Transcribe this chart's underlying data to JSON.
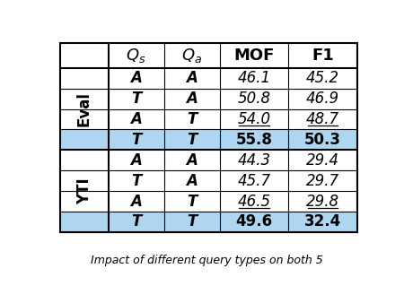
{
  "col_headers": [
    "",
    "$Q_s$",
    "$Q_a$",
    "MOF",
    "F1"
  ],
  "row_groups": [
    {
      "group_label": "Eval",
      "rows": [
        {
          "qs": "A",
          "qa": "A",
          "mof": "46.1",
          "f1": "45.2",
          "underline_mof": false,
          "underline_f1": false,
          "bold": false,
          "highlight": false
        },
        {
          "qs": "T",
          "qa": "A",
          "mof": "50.8",
          "f1": "46.9",
          "underline_mof": false,
          "underline_f1": false,
          "bold": false,
          "highlight": false
        },
        {
          "qs": "A",
          "qa": "T",
          "mof": "54.0",
          "f1": "48.7",
          "underline_mof": true,
          "underline_f1": true,
          "bold": false,
          "highlight": false
        },
        {
          "qs": "T",
          "qa": "T",
          "mof": "55.8",
          "f1": "50.3",
          "underline_mof": false,
          "underline_f1": false,
          "bold": true,
          "highlight": true
        }
      ]
    },
    {
      "group_label": "YTI",
      "rows": [
        {
          "qs": "A",
          "qa": "A",
          "mof": "44.3",
          "f1": "29.4",
          "underline_mof": false,
          "underline_f1": false,
          "bold": false,
          "highlight": false
        },
        {
          "qs": "T",
          "qa": "A",
          "mof": "45.7",
          "f1": "29.7",
          "underline_mof": false,
          "underline_f1": false,
          "bold": false,
          "highlight": false
        },
        {
          "qs": "A",
          "qa": "T",
          "mof": "46.5",
          "f1": "29.8",
          "underline_mof": true,
          "underline_f1": true,
          "bold": false,
          "highlight": false
        },
        {
          "qs": "T",
          "qa": "T",
          "mof": "49.6",
          "f1": "32.4",
          "underline_mof": false,
          "underline_f1": false,
          "bold": true,
          "highlight": true
        }
      ]
    }
  ],
  "highlight_color": "#AED6F1",
  "border_color": "#000000",
  "background_color": "#ffffff",
  "font_size": 12,
  "header_font_size": 13,
  "group_label_font_size": 12,
  "caption": "Impact of different query types on both 5"
}
